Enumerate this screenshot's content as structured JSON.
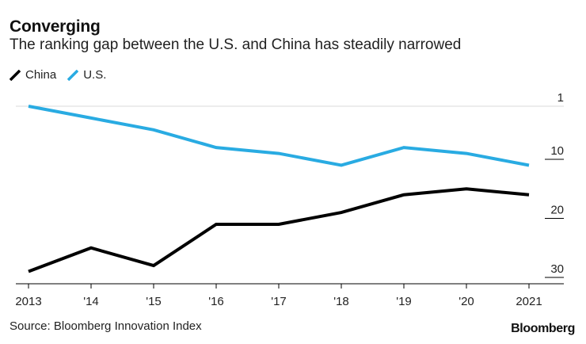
{
  "header": {
    "title": "Converging",
    "subtitle": "The ranking gap between the U.S. and China has steadily narrowed"
  },
  "footer": {
    "source": "Source: Bloomberg Innovation Index",
    "brand": "Bloomberg"
  },
  "colors": {
    "china": "#000000",
    "us": "#29abe2",
    "axis": "#000000",
    "grid": "#d9d9d9"
  },
  "chart_data": {
    "type": "line",
    "title": "Converging",
    "subtitle": "The ranking gap between the U.S. and China has steadily narrowed",
    "xlabel": "",
    "ylabel": "",
    "x": [
      "2013",
      "'14",
      "'15",
      "'16",
      "'17",
      "'18",
      "'19",
      "'20",
      "2021"
    ],
    "y_axis": {
      "inverted": true,
      "ylim": [
        1,
        31
      ],
      "ticks": [
        1,
        10,
        20,
        30
      ],
      "tick_labels": [
        "1",
        "10",
        "20",
        "30"
      ],
      "position": "right"
    },
    "legend": "top-left",
    "series": [
      {
        "name": "China",
        "values": [
          29,
          25,
          28,
          21,
          21,
          19,
          16,
          15,
          16
        ]
      },
      {
        "name": "U.S.",
        "values": [
          1,
          3,
          5,
          8,
          9,
          11,
          8,
          9,
          11
        ]
      }
    ]
  }
}
